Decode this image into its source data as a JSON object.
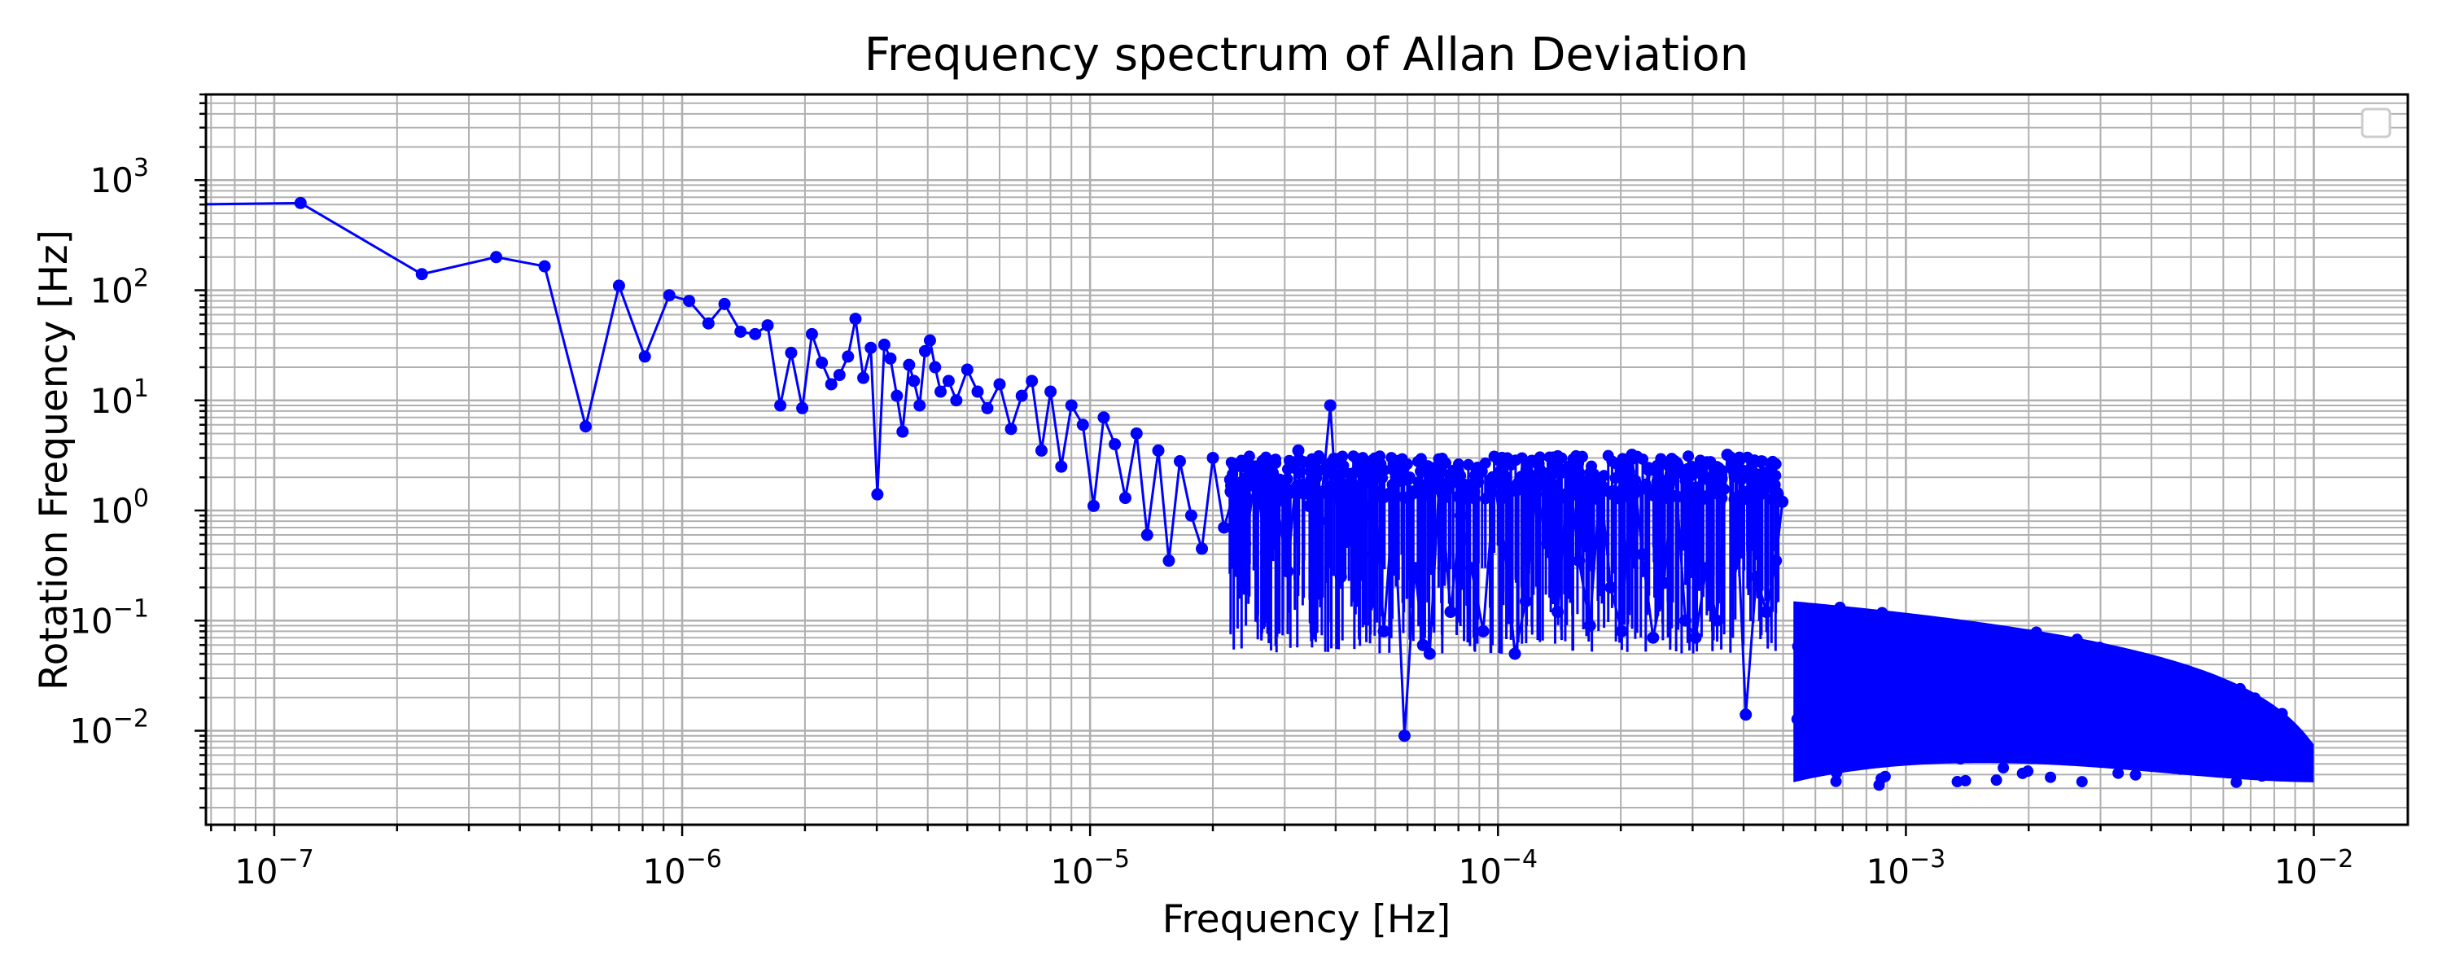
{
  "chart_data": {
    "type": "scatter",
    "title": "Frequency spectrum of Allan Deviation",
    "xlabel": "Frequency [Hz]",
    "ylabel": "Rotation Frequency [Hz]",
    "xscale": "log",
    "yscale": "log",
    "xlim": [
      6.8e-08,
      0.017
    ],
    "ylim": [
      0.0014,
      6000
    ],
    "grid": "both major and minor",
    "legend": "top-right (empty)",
    "colors": {
      "series": "#0000ff",
      "grid": "#b0b0b0",
      "axes": "#000000"
    },
    "x_ticks": [
      {
        "value": 1e-07,
        "base": "10",
        "exp": "−7"
      },
      {
        "value": 1e-06,
        "base": "10",
        "exp": "−6"
      },
      {
        "value": 1e-05,
        "base": "10",
        "exp": "−5"
      },
      {
        "value": 0.0001,
        "base": "10",
        "exp": "−4"
      },
      {
        "value": 0.001,
        "base": "10",
        "exp": "−3"
      },
      {
        "value": 0.01,
        "base": "10",
        "exp": "−2"
      }
    ],
    "y_ticks": [
      {
        "value": 0.01,
        "base": "10",
        "exp": "−2"
      },
      {
        "value": 0.1,
        "base": "10",
        "exp": "−1"
      },
      {
        "value": 1,
        "base": "10",
        "exp": "0"
      },
      {
        "value": 10,
        "base": "10",
        "exp": "1"
      },
      {
        "value": 100,
        "base": "10",
        "exp": "2"
      },
      {
        "value": 1000,
        "base": "10",
        "exp": "3"
      }
    ],
    "series": [
      {
        "x": [
          6e-08,
          1.16e-07,
          2.3e-07,
          3.5e-07,
          4.6e-07,
          5.8e-07,
          7e-07,
          8.1e-07,
          9.3e-07,
          1.04e-06,
          1.16e-06,
          1.27e-06,
          1.39e-06,
          1.51e-06,
          1.62e-06,
          1.74e-06,
          1.85e-06,
          1.97e-06,
          2.08e-06,
          2.2e-06,
          2.32e-06,
          2.43e-06,
          2.55e-06,
          2.66e-06,
          2.78e-06,
          2.9e-06,
          3.01e-06,
          3.13e-06,
          3.24e-06,
          3.36e-06,
          3.47e-06,
          3.6e-06,
          3.7e-06,
          3.82e-06,
          3.94e-06,
          4.05e-06,
          4.17e-06,
          4.3e-06,
          4.5e-06,
          4.7e-06,
          5e-06,
          5.3e-06,
          5.6e-06,
          6e-06,
          6.4e-06,
          6.8e-06,
          7.2e-06,
          7.6e-06,
          8e-06,
          8.5e-06,
          9e-06,
          9.6e-06,
          1.02e-05,
          1.08e-05,
          1.15e-05,
          1.22e-05,
          1.3e-05,
          1.38e-05,
          1.47e-05,
          1.56e-05,
          1.66e-05,
          1.77e-05,
          1.88e-05,
          2e-05,
          2.13e-05,
          2.26e-05,
          2.4e-05,
          2.55e-05,
          2.7e-05,
          2.87e-05,
          3.05e-05,
          3.24e-05,
          3.44e-05,
          3.65e-05,
          3.88e-05,
          4.12e-05,
          4.38e-05,
          4.65e-05,
          4.94e-05,
          5.25e-05,
          5.55e-05,
          5.9e-05,
          6.26e-05,
          6.55e-05,
          6.8e-05,
          7.2e-05,
          7.65e-05,
          8.1e-05,
          8.6e-05,
          9.2e-05,
          9.8e-05,
          0.000104,
          0.00011,
          0.000117,
          0.000124,
          0.000132,
          0.00014,
          0.000149,
          0.000158,
          0.000168,
          0.000178,
          0.000189,
          0.000201,
          0.000213,
          0.000226,
          0.00024,
          0.000255,
          0.000271,
          0.000288,
          0.000305,
          0.000324,
          0.000344,
          0.000365,
          0.000388,
          0.000405,
          0.00043,
          0.000455,
          0.00048,
          0.000498
        ],
        "y": [
          600,
          620,
          140,
          200,
          165,
          5.8,
          110,
          25,
          90,
          80,
          50,
          75,
          42,
          40,
          48,
          9,
          27,
          8.5,
          40,
          22,
          14,
          17,
          25,
          55,
          16,
          30,
          1.4,
          32,
          24,
          11,
          5.2,
          21,
          15,
          9,
          28,
          35,
          20,
          12,
          15,
          10,
          19,
          12,
          8.5,
          14,
          5.5,
          11,
          15,
          3.5,
          12,
          2.5,
          9,
          6,
          1.1,
          7,
          4,
          1.3,
          5,
          0.6,
          3.5,
          0.35,
          2.8,
          0.9,
          0.45,
          3,
          0.7,
          1.5,
          0.5,
          2.2,
          0.42,
          1.2,
          0.28,
          3.5,
          1.1,
          0.8,
          9,
          0.25,
          1.7,
          0.4,
          2.5,
          0.08,
          1.3,
          0.009,
          0.3,
          0.06,
          0.05,
          2.2,
          0.12,
          0.9,
          0.3,
          0.08,
          1.8,
          0.45,
          0.05,
          0.15,
          1.6,
          0.5,
          0.12,
          2.5,
          0.35,
          0.09,
          1.8,
          0.2,
          0.08,
          3.2,
          0.4,
          0.07,
          0.22,
          2.8,
          0.1,
          0.07,
          0.3,
          0.1,
          3.2,
          0.5,
          0.014,
          0.25,
          0.12,
          0.35,
          1.2
        ]
      }
    ]
  }
}
